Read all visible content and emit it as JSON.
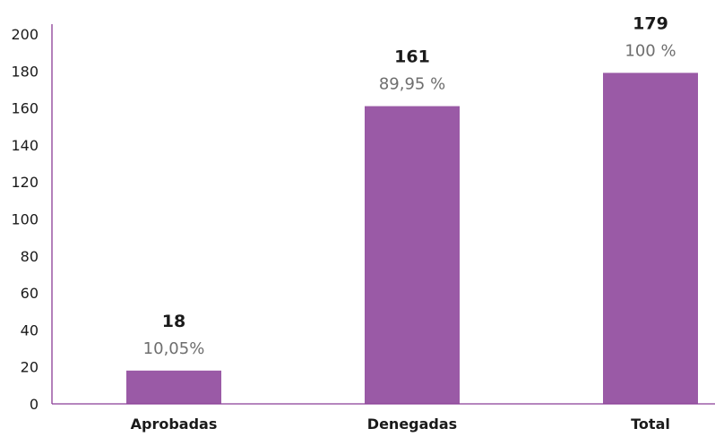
{
  "chart_data": {
    "type": "bar",
    "categories": [
      "Aprobadas",
      "Denegadas",
      "Total"
    ],
    "values": [
      18,
      161,
      179
    ],
    "percent_labels": [
      "10,05%",
      "89,95 %",
      "100 %"
    ],
    "title": "",
    "xlabel": "",
    "ylabel": "",
    "ylim": [
      0,
      200
    ],
    "yticks": [
      0,
      20,
      40,
      60,
      80,
      100,
      120,
      140,
      160,
      180,
      200
    ],
    "grid": false,
    "legend": "none",
    "colors": {
      "bar": "#9a5aa6",
      "axis": "#8a3d96",
      "value_text": "#1a1a1a",
      "percent_text": "#6e6e6e"
    }
  }
}
